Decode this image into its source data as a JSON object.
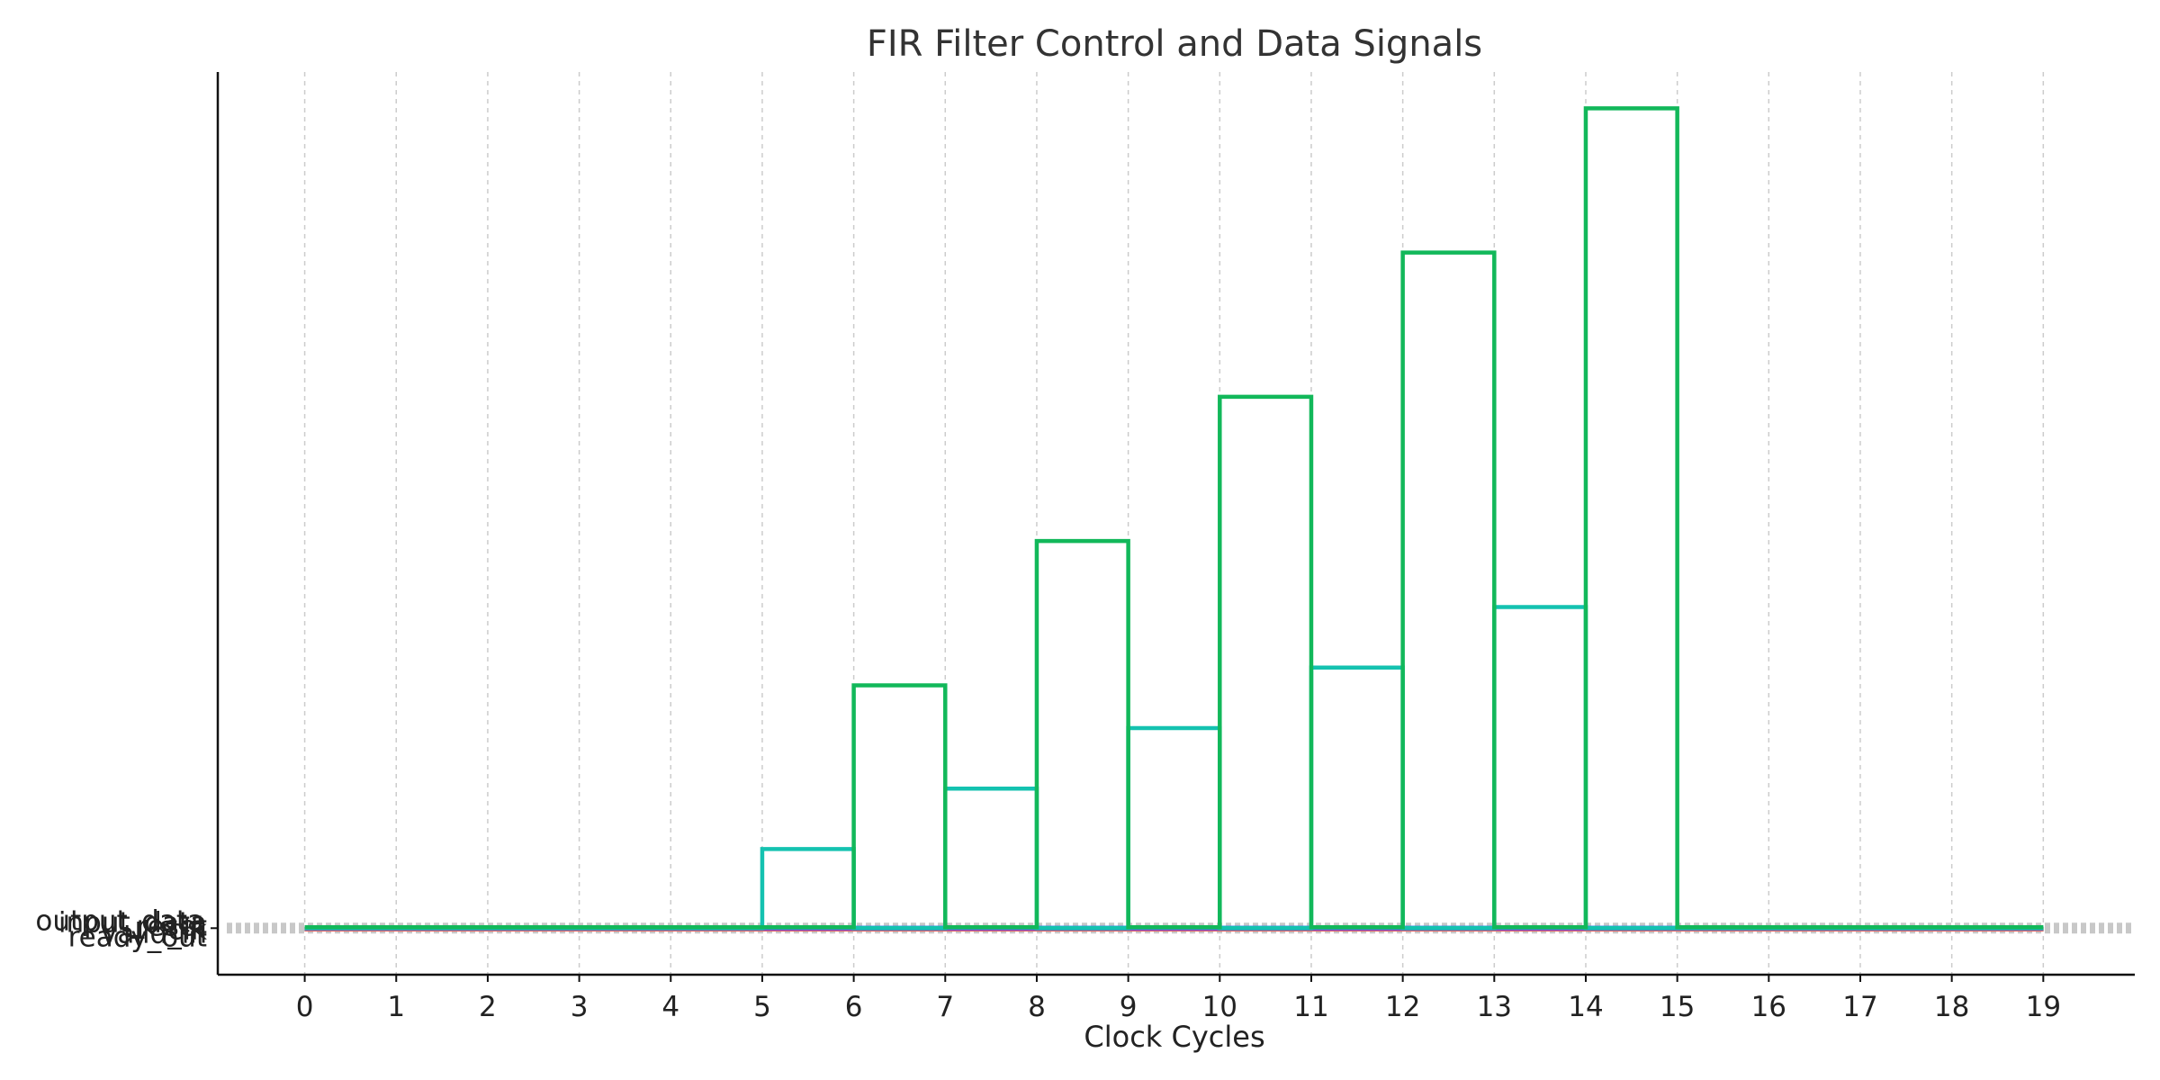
{
  "chart_data": {
    "type": "line",
    "title": "FIR Filter Control and Data Signals",
    "xlabel": "Clock Cycles",
    "ylabel": "",
    "x": [
      0,
      1,
      2,
      3,
      4,
      5,
      6,
      7,
      8,
      9,
      10,
      11,
      12,
      13,
      14,
      15,
      16,
      17,
      18,
      19
    ],
    "xlim": [
      -0.95,
      20
    ],
    "ylim": [
      -0.5,
      9.2
    ],
    "grid": "x-only, dashed",
    "legend": "none",
    "ytick_labels": [
      "reset",
      "clk",
      "valid_in",
      "ready_out",
      "input_data",
      "output_data"
    ],
    "series": [
      {
        "name": "reset",
        "color": "#f4a040",
        "values": [
          0,
          0,
          0,
          0,
          0,
          0,
          0,
          0,
          0,
          0,
          0,
          0,
          0,
          0,
          0,
          0,
          0,
          0,
          0,
          0
        ]
      },
      {
        "name": "clk",
        "color": "#e06060",
        "values": [
          0,
          0,
          0,
          0,
          0,
          0,
          0,
          0,
          0,
          0,
          0,
          0,
          0,
          0,
          0,
          0,
          0,
          0,
          0,
          0
        ]
      },
      {
        "name": "valid_in",
        "color": "#7b4fd0",
        "values": [
          0,
          0,
          0,
          0,
          0,
          0,
          0,
          0,
          0,
          0,
          0,
          0,
          0,
          0,
          0,
          0,
          0,
          0,
          0,
          0
        ]
      },
      {
        "name": "ready_out",
        "color": "#3a8ee0",
        "values": [
          0,
          0,
          0,
          0,
          0,
          0,
          0,
          0,
          0,
          0,
          0,
          0,
          0,
          0,
          0,
          0,
          0,
          0,
          0,
          0
        ]
      },
      {
        "name": "input_data",
        "color": "#14c2b0",
        "values": [
          0,
          0,
          0,
          0,
          0,
          0.85,
          0,
          1.5,
          0,
          2.15,
          0,
          2.8,
          0,
          3.45,
          0,
          0,
          0,
          0,
          0,
          0
        ]
      },
      {
        "name": "output_data",
        "color": "#12b85a",
        "values": [
          0,
          0,
          0,
          0,
          0,
          0,
          2.6,
          0,
          4.15,
          0,
          5.7,
          0,
          7.25,
          0,
          8.8,
          0,
          0,
          0,
          0,
          0
        ]
      }
    ]
  }
}
